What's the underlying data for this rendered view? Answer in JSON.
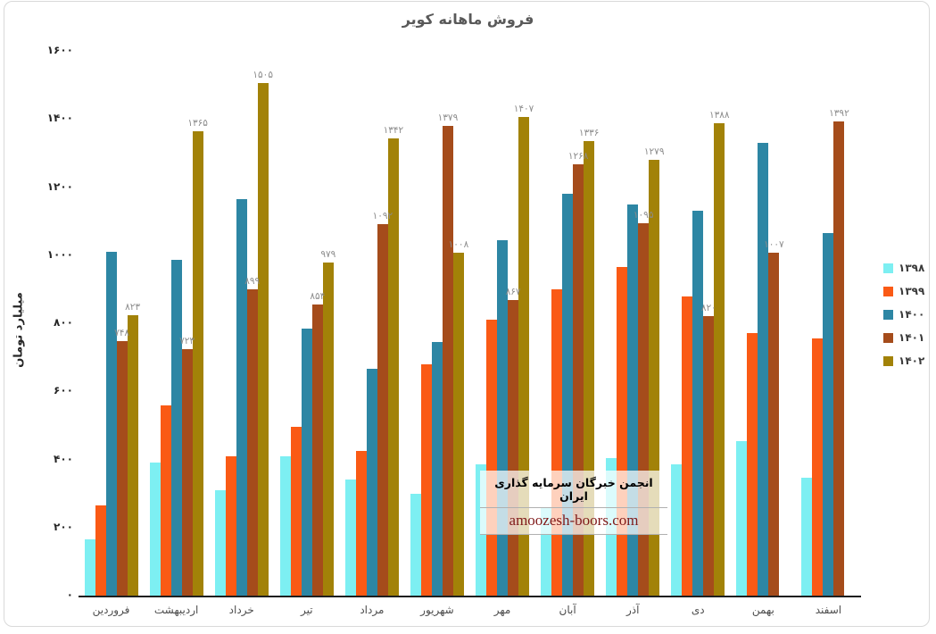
{
  "title": "فروش ماهانه کویر",
  "y_axis_title": "میلیارد تومان",
  "watermark": {
    "line1": "انجمن خبرگان سرمایه گذاری ایران",
    "line2": "amoozesh-boors.com"
  },
  "chart_data": {
    "type": "bar",
    "title": "فروش ماهانه کویر",
    "ylabel": "میلیارد تومان",
    "xlabel": "",
    "ylim": [
      0,
      1600
    ],
    "ytick_step": 200,
    "grid": false,
    "legend_position": "right",
    "digit_locale": "persian",
    "categories": [
      "فروردین",
      "اردیبهشت",
      "خرداد",
      "تیر",
      "مرداد",
      "شهریور",
      "مهر",
      "آبان",
      "آذر",
      "دی",
      "بهمن",
      "اسفند"
    ],
    "series": [
      {
        "name": "۱۳۹۸",
        "year": 1398,
        "color": "#7DEFF2",
        "show_labels": false,
        "values": [
          165,
          390,
          310,
          410,
          340,
          300,
          385,
          260,
          405,
          385,
          455,
          345
        ]
      },
      {
        "name": "۱۳۹۹",
        "year": 1399,
        "color": "#FA5A15",
        "show_labels": false,
        "values": [
          265,
          560,
          410,
          495,
          425,
          680,
          810,
          900,
          965,
          880,
          770,
          755
        ]
      },
      {
        "name": "۱۴۰۰",
        "year": 1400,
        "color": "#2D86A4",
        "show_labels": false,
        "values": [
          1010,
          985,
          1165,
          785,
          665,
          745,
          1045,
          1180,
          1150,
          1130,
          1330,
          1065
        ]
      },
      {
        "name": "۱۴۰۱",
        "year": 1401,
        "color": "#A54C1B",
        "show_labels": true,
        "values": [
          748,
          723,
          899,
          854,
          1092,
          1379,
          867,
          1268,
          1095,
          820,
          1007,
          1392
        ]
      },
      {
        "name": "۱۴۰۲",
        "year": 1402,
        "color": "#A28208",
        "show_labels": true,
        "values": [
          823,
          1365,
          1505,
          979,
          1342,
          1008,
          1407,
          1336,
          1279,
          1388,
          null,
          null
        ]
      }
    ]
  }
}
